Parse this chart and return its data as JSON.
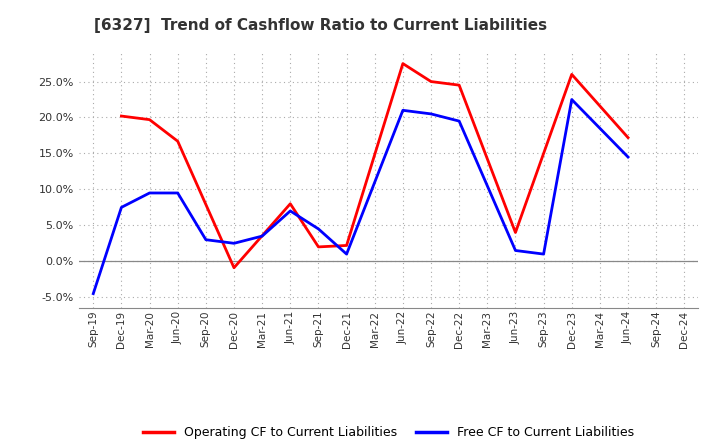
{
  "title": "[6327]  Trend of Cashflow Ratio to Current Liabilities",
  "x_labels": [
    "Sep-19",
    "Dec-19",
    "Mar-20",
    "Jun-20",
    "Sep-20",
    "Dec-20",
    "Mar-21",
    "Jun-21",
    "Sep-21",
    "Dec-21",
    "Mar-22",
    "Jun-22",
    "Sep-22",
    "Dec-22",
    "Mar-23",
    "Jun-23",
    "Sep-23",
    "Dec-23",
    "Mar-24",
    "Jun-24",
    "Sep-24",
    "Dec-24"
  ],
  "operating_color": "#FF0000",
  "free_color": "#0000FF",
  "ylim": [
    -6.5,
    29.0
  ],
  "yticks": [
    -5.0,
    0.0,
    5.0,
    10.0,
    15.0,
    20.0,
    25.0
  ],
  "background_color": "#FFFFFF",
  "plot_bg_color": "#FFFFFF",
  "grid_color": "#AAAAAA",
  "legend_op": "Operating CF to Current Liabilities",
  "legend_free": "Free CF to Current Liabilities",
  "op_x": [
    1,
    2,
    3,
    5,
    7,
    8,
    9,
    11,
    12,
    13,
    15,
    17,
    19
  ],
  "op_y": [
    20.2,
    19.7,
    16.7,
    -0.9,
    8.0,
    2.0,
    2.2,
    27.5,
    25.0,
    24.5,
    4.0,
    26.0,
    17.2
  ],
  "free_x": [
    0,
    1,
    2,
    3,
    4,
    5,
    6,
    7,
    8,
    9,
    11,
    12,
    13,
    15,
    16,
    17,
    19
  ],
  "free_y": [
    -4.5,
    7.5,
    9.5,
    9.5,
    3.0,
    2.5,
    3.5,
    7.0,
    4.5,
    1.0,
    21.0,
    20.5,
    19.5,
    1.5,
    1.0,
    22.5,
    14.5
  ]
}
